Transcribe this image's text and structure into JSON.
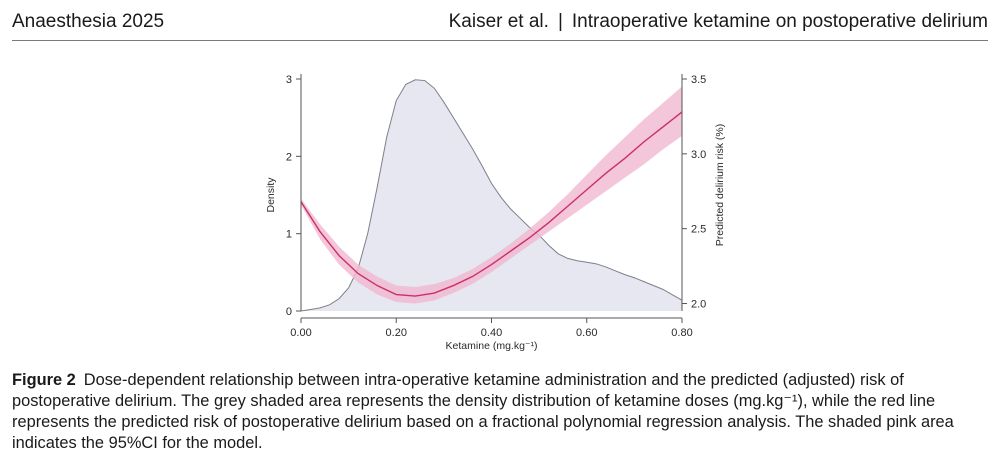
{
  "header": {
    "journal": "Anaesthesia 2025",
    "authors": "Kaiser et al.",
    "separator": "|",
    "short_title": "Intraoperative ketamine on postoperative delirium"
  },
  "chart_data": {
    "type": "area",
    "xlabel": "Ketamine (mg.kg⁻¹)",
    "ylabel_left": "Density",
    "ylabel_right": "Predicted delirium risk (%)",
    "xlim": [
      0,
      0.8
    ],
    "ylim_left": [
      0,
      3
    ],
    "ylim_right": [
      1.95,
      3.5
    ],
    "x_ticks": [
      "0.00",
      "0.20",
      "0.40",
      "0.60",
      "0.80"
    ],
    "y_left_ticks": [
      "0",
      "1",
      "2",
      "3"
    ],
    "y_right_ticks": [
      "2.0",
      "2.5",
      "3.0",
      "3.5"
    ],
    "colors": {
      "density_fill": "#e6e7f0",
      "density_line": "#7f7f8a",
      "risk_line": "#cc2f6a",
      "ci_fill": "#f1b8cf"
    },
    "density": {
      "x": [
        0.0,
        0.02,
        0.04,
        0.06,
        0.08,
        0.1,
        0.12,
        0.14,
        0.16,
        0.18,
        0.2,
        0.22,
        0.24,
        0.26,
        0.28,
        0.3,
        0.32,
        0.34,
        0.36,
        0.38,
        0.4,
        0.42,
        0.44,
        0.46,
        0.48,
        0.5,
        0.52,
        0.54,
        0.56,
        0.58,
        0.6,
        0.62,
        0.64,
        0.66,
        0.68,
        0.7,
        0.72,
        0.74,
        0.76,
        0.78,
        0.8
      ],
      "y": [
        0.0,
        0.02,
        0.04,
        0.08,
        0.16,
        0.3,
        0.55,
        1.0,
        1.6,
        2.25,
        2.72,
        2.93,
        2.99,
        2.98,
        2.88,
        2.7,
        2.5,
        2.3,
        2.1,
        1.88,
        1.65,
        1.47,
        1.32,
        1.2,
        1.08,
        0.98,
        0.85,
        0.74,
        0.68,
        0.65,
        0.63,
        0.61,
        0.57,
        0.52,
        0.47,
        0.43,
        0.38,
        0.33,
        0.28,
        0.21,
        0.14
      ]
    },
    "risk": {
      "x": [
        0.0,
        0.04,
        0.08,
        0.12,
        0.16,
        0.2,
        0.24,
        0.28,
        0.32,
        0.36,
        0.4,
        0.44,
        0.48,
        0.52,
        0.56,
        0.6,
        0.64,
        0.68,
        0.72,
        0.76,
        0.8
      ],
      "y": [
        2.68,
        2.48,
        2.32,
        2.2,
        2.12,
        2.06,
        2.05,
        2.07,
        2.12,
        2.18,
        2.26,
        2.35,
        2.44,
        2.54,
        2.65,
        2.76,
        2.87,
        2.97,
        3.08,
        3.18,
        3.28
      ],
      "ci_lower": [
        2.66,
        2.43,
        2.26,
        2.14,
        2.06,
        2.01,
        2.0,
        2.02,
        2.07,
        2.13,
        2.21,
        2.3,
        2.39,
        2.48,
        2.57,
        2.66,
        2.75,
        2.84,
        2.93,
        3.03,
        3.12
      ],
      "ci_upper": [
        2.7,
        2.53,
        2.38,
        2.26,
        2.18,
        2.12,
        2.11,
        2.13,
        2.17,
        2.23,
        2.31,
        2.4,
        2.5,
        2.61,
        2.73,
        2.86,
        2.99,
        3.11,
        3.23,
        3.34,
        3.45
      ]
    }
  },
  "caption": {
    "label": "Figure 2",
    "text": "Dose-dependent relationship between intra-operative ketamine administration and the predicted (adjusted) risk of postoperative delirium. The grey shaded area represents the density distribution of ketamine doses (mg.kg⁻¹), while the red line represents the predicted risk of postoperative delirium based on a fractional polynomial regression analysis. The shaded pink area indicates the 95%CI for the model."
  }
}
